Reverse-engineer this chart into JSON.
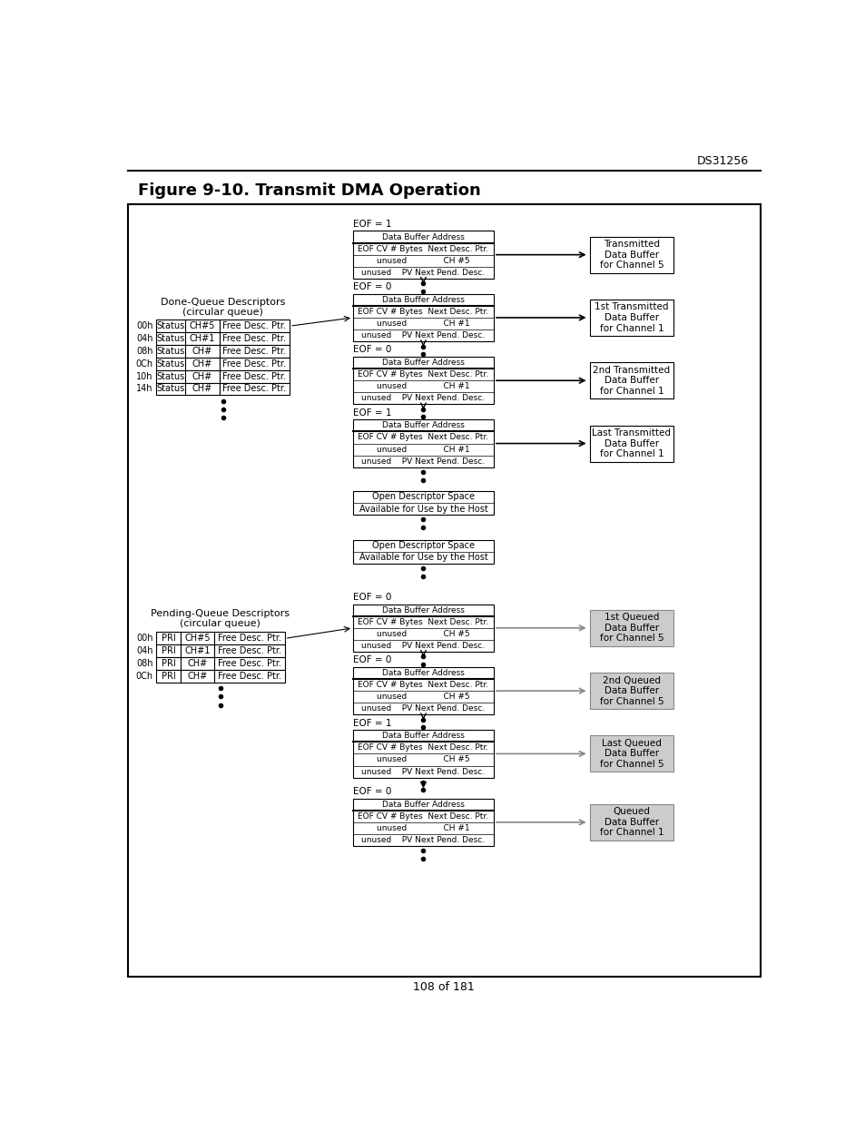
{
  "title": "Figure 9-10. Transmit DMA Operation",
  "header_text": "DS31256",
  "footer_text": "108 of 181",
  "bg_color": "#ffffff",
  "done_queue_label1": "Done-Queue Descriptors",
  "done_queue_label2": "(circular queue)",
  "pending_queue_label1": "Pending-Queue Descriptors",
  "pending_queue_label2": "(circular queue)",
  "done_queue_rows": [
    {
      "addr": "00h",
      "col1": "Status",
      "col2": "CH#5",
      "col3": "Free Desc. Ptr."
    },
    {
      "addr": "04h",
      "col1": "Status",
      "col2": "CH#1",
      "col3": "Free Desc. Ptr."
    },
    {
      "addr": "08h",
      "col1": "Status",
      "col2": "CH#",
      "col3": "Free Desc. Ptr."
    },
    {
      "addr": "0Ch",
      "col1": "Status",
      "col2": "CH#",
      "col3": "Free Desc. Ptr."
    },
    {
      "addr": "10h",
      "col1": "Status",
      "col2": "CH#",
      "col3": "Free Desc. Ptr."
    },
    {
      "addr": "14h",
      "col1": "Status",
      "col2": "CH#",
      "col3": "Free Desc. Ptr."
    }
  ],
  "pending_queue_rows": [
    {
      "addr": "00h",
      "col1": "PRI",
      "col2": "CH#5",
      "col3": "Free Desc. Ptr."
    },
    {
      "addr": "04h",
      "col1": "PRI",
      "col2": "CH#1",
      "col3": "Free Desc. Ptr."
    },
    {
      "addr": "08h",
      "col1": "PRI",
      "col2": "CH#",
      "col3": "Free Desc. Ptr."
    },
    {
      "addr": "0Ch",
      "col1": "PRI",
      "col2": "CH#",
      "col3": "Free Desc. Ptr."
    }
  ],
  "desc_blocks_top": [
    {
      "eof_label": "EOF = 1",
      "row0": "Data Buffer Address",
      "row1": "EOF CV # Bytes  Next Desc. Ptr.",
      "row2": "unused              CH #5",
      "row3": "unused    PV Next Pend. Desc.",
      "buf_label": "Transmitted\nData Buffer\nfor Channel 5",
      "gray": false
    },
    {
      "eof_label": "EOF = 0",
      "row0": "Data Buffer Address",
      "row1": "EOF CV # Bytes  Next Desc. Ptr.",
      "row2": "unused              CH #1",
      "row3": "unused    PV Next Pend. Desc.",
      "buf_label": "1st Transmitted\nData Buffer\nfor Channel 1",
      "gray": false
    },
    {
      "eof_label": "EOF = 0",
      "row0": "Data Buffer Address",
      "row1": "EOF CV # Bytes  Next Desc. Ptr.",
      "row2": "unused              CH #1",
      "row3": "unused    PV Next Pend. Desc.",
      "buf_label": "2nd Transmitted\nData Buffer\nfor Channel 1",
      "gray": false
    },
    {
      "eof_label": "EOF = 1",
      "row0": "Data Buffer Address",
      "row1": "EOF CV # Bytes  Next Desc. Ptr.",
      "row2": "unused              CH #1",
      "row3": "unused    PV Next Pend. Desc.",
      "buf_label": "Last Transmitted\nData Buffer\nfor Channel 1",
      "gray": false
    }
  ],
  "open_blocks": [
    [
      "Open Descriptor Space",
      "Available for Use by the Host"
    ],
    [
      "Open Descriptor Space",
      "Available for Use by the Host"
    ]
  ],
  "desc_blocks_bottom": [
    {
      "eof_label": "EOF = 0",
      "row0": "Data Buffer Address",
      "row1": "EOF CV # Bytes  Next Desc. Ptr.",
      "row2": "unused              CH #5",
      "row3": "unused    PV Next Pend. Desc.",
      "buf_label": "1st Queued\nData Buffer\nfor Channel 5",
      "gray": true
    },
    {
      "eof_label": "EOF = 0",
      "row0": "Data Buffer Address",
      "row1": "EOF CV # Bytes  Next Desc. Ptr.",
      "row2": "unused              CH #5",
      "row3": "unused    PV Next Pend. Desc.",
      "buf_label": "2nd Queued\nData Buffer\nfor Channel 5",
      "gray": true
    },
    {
      "eof_label": "EOF = 1",
      "row0": "Data Buffer Address",
      "row1": "EOF CV # Bytes  Next Desc. Ptr.",
      "row2": "unused              CH #5",
      "row3": "unused    PV Next Pend. Desc.",
      "buf_label": "Last Queued\nData Buffer\nfor Channel 5",
      "gray": true
    },
    {
      "eof_label": "EOF = 0",
      "row0": "Data Buffer Address",
      "row1": "EOF CV # Bytes  Next Desc. Ptr.",
      "row2": "unused              CH #1",
      "row3": "unused    PV Next Pend. Desc.",
      "buf_label": "Queued\nData Buffer\nfor Channel 1",
      "gray": true
    }
  ]
}
